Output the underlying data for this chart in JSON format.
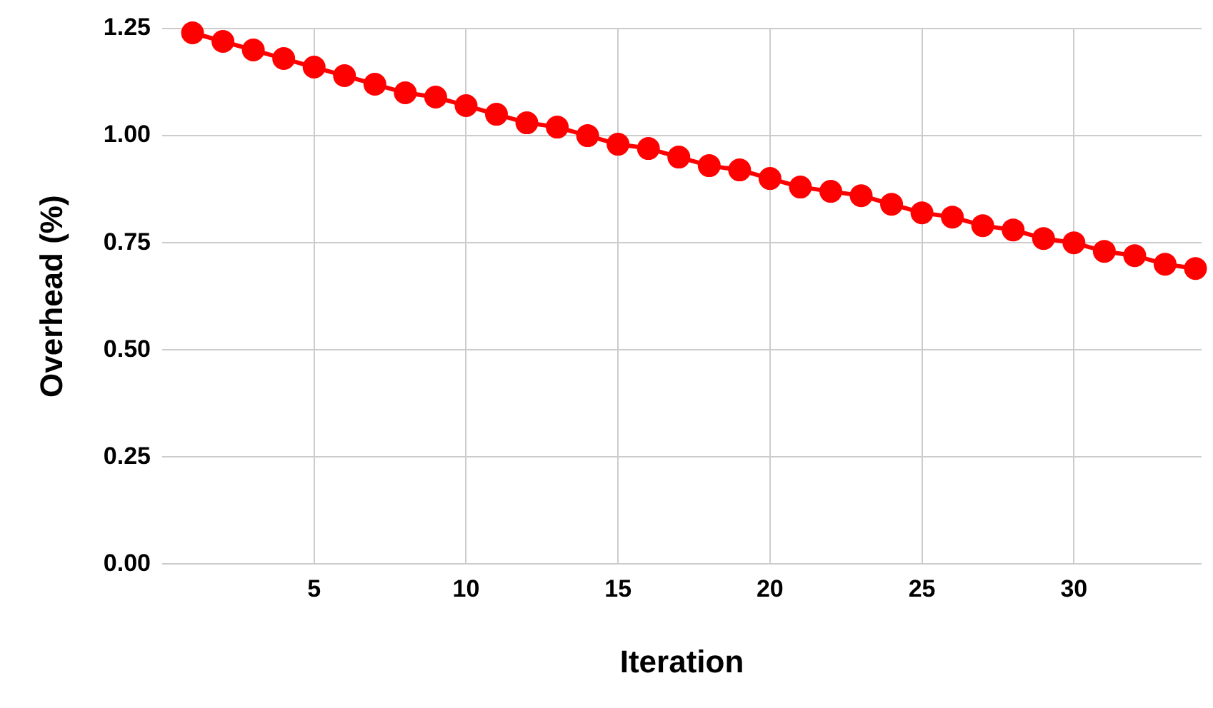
{
  "chart_data": {
    "type": "line",
    "xlabel": "Iteration",
    "ylabel": "Overhead (%)",
    "x": [
      1,
      2,
      3,
      4,
      5,
      6,
      7,
      8,
      9,
      10,
      11,
      12,
      13,
      14,
      15,
      16,
      17,
      18,
      19,
      20,
      21,
      22,
      23,
      24,
      25,
      26,
      27,
      28,
      29,
      30,
      31,
      32,
      33,
      34
    ],
    "series": [
      {
        "color": "#ff0000",
        "values": [
          1.24,
          1.22,
          1.2,
          1.18,
          1.16,
          1.14,
          1.12,
          1.1,
          1.09,
          1.07,
          1.05,
          1.03,
          1.02,
          1.0,
          0.98,
          0.97,
          0.95,
          0.93,
          0.92,
          0.9,
          0.88,
          0.87,
          0.86,
          0.84,
          0.82,
          0.81,
          0.79,
          0.78,
          0.76,
          0.75,
          0.73,
          0.72,
          0.7,
          0.69
        ]
      }
    ],
    "xlim": [
      0,
      34.2
    ],
    "xticks": [
      5,
      10,
      15,
      20,
      25,
      30
    ],
    "ylim": [
      0,
      1.25
    ],
    "yticks": [
      {
        "value": 0,
        "label": "0.00"
      },
      {
        "value": 0.25,
        "label": "0.25"
      },
      {
        "value": 0.5,
        "label": "0.50"
      },
      {
        "value": 0.75,
        "label": "0.75"
      },
      {
        "value": 1,
        "label": "1.00"
      },
      {
        "value": 1.25,
        "label": "1.25"
      }
    ],
    "grid": true,
    "legend": false,
    "marker": "circle",
    "line_style": "solid"
  }
}
